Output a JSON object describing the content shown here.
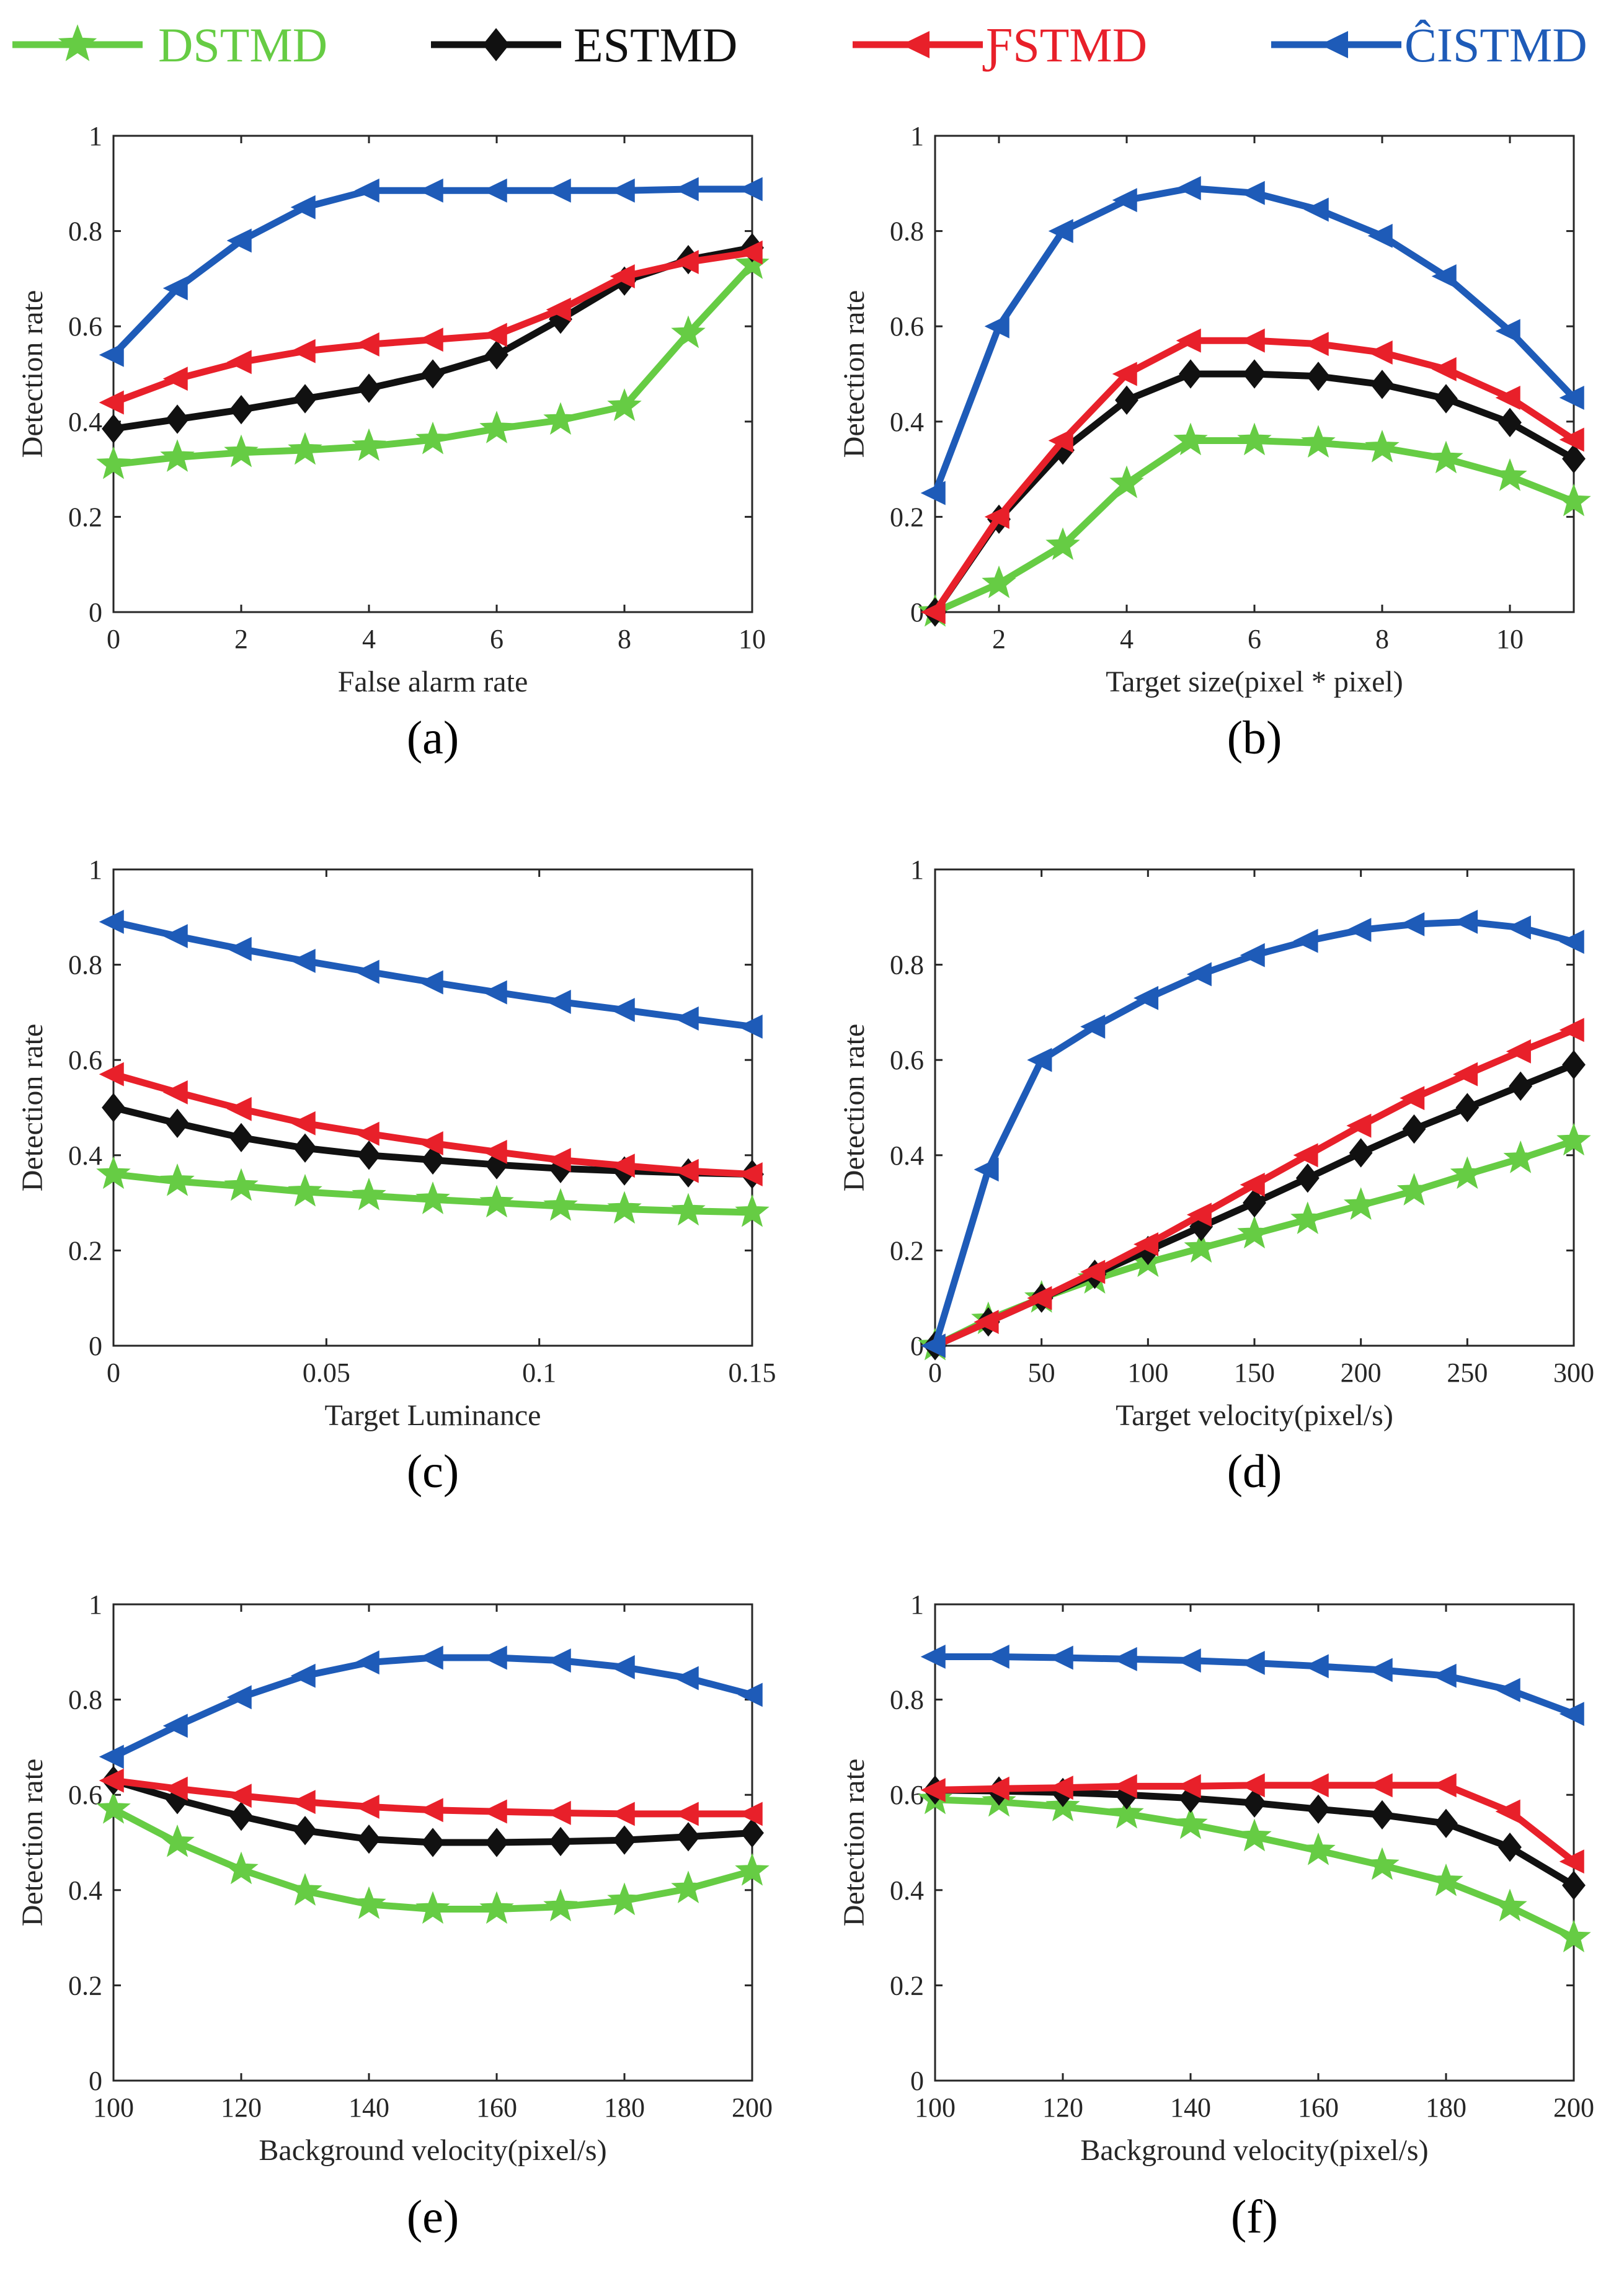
{
  "colors": {
    "DSTMD": "#66cc44",
    "ESTMD": "#111111",
    "FSTMD": "#e8202a",
    "CISTMD": "#1e5bb8"
  },
  "legend": [
    {
      "name": "DSTMD",
      "marker": "star"
    },
    {
      "name": "ESTMD",
      "marker": "diamond"
    },
    {
      "name": "FSTMD",
      "marker": "triangle-left"
    },
    {
      "name": "CISTMD",
      "marker": "triangle-left"
    }
  ],
  "legend_text": [
    "DSTMD",
    "ESTMD",
    "ƑSTMD",
    "ĈISTMD"
  ],
  "chart_data": [
    {
      "type": "line",
      "panel_label": "(a)",
      "xlabel": "False alarm rate",
      "ylabel": "Detection rate",
      "xlim": [
        0,
        10
      ],
      "ylim": [
        0,
        1
      ],
      "xticks": [
        0,
        2,
        4,
        6,
        8,
        10
      ],
      "xtick_labels": [
        "0",
        "2",
        "4",
        "6",
        "8",
        "10"
      ],
      "yticks": [
        0,
        0.2,
        0.4,
        0.6,
        0.8,
        1
      ],
      "ytick_labels": [
        "0",
        "0.2",
        "0.4",
        "0.6",
        "0.8",
        "1"
      ],
      "x": [
        0,
        1,
        2,
        3,
        4,
        5,
        6,
        7,
        8,
        9,
        10
      ],
      "series": [
        {
          "name": "DSTMD",
          "values": [
            0.31,
            0.325,
            0.335,
            0.34,
            0.348,
            0.362,
            0.385,
            0.403,
            0.432,
            0.585,
            0.73
          ]
        },
        {
          "name": "ESTMD",
          "values": [
            0.385,
            0.405,
            0.425,
            0.448,
            0.47,
            0.5,
            0.54,
            0.615,
            0.695,
            0.74,
            0.765
          ]
        },
        {
          "name": "FSTMD",
          "values": [
            0.44,
            0.49,
            0.525,
            0.548,
            0.562,
            0.572,
            0.582,
            0.635,
            0.705,
            0.735,
            0.755
          ]
        },
        {
          "name": "CISTMD",
          "values": [
            0.54,
            0.68,
            0.78,
            0.85,
            0.885,
            0.885,
            0.885,
            0.885,
            0.885,
            0.888,
            0.888
          ]
        }
      ]
    },
    {
      "type": "line",
      "panel_label": "(b)",
      "xlabel": "Target size(pixel * pixel)",
      "ylabel": "Detection rate",
      "xlim": [
        1,
        11
      ],
      "ylim": [
        0,
        1
      ],
      "xticks": [
        2,
        4,
        6,
        8,
        10
      ],
      "xtick_labels": [
        "2",
        "4",
        "6",
        "8",
        "10"
      ],
      "yticks": [
        0,
        0.2,
        0.4,
        0.6,
        0.8,
        1
      ],
      "ytick_labels": [
        "0",
        "0.2",
        "0.4",
        "0.6",
        "0.8",
        "1"
      ],
      "x": [
        1,
        2,
        3,
        4,
        5,
        6,
        7,
        8,
        9,
        10,
        11
      ],
      "series": [
        {
          "name": "DSTMD",
          "values": [
            0,
            0.06,
            0.14,
            0.27,
            0.36,
            0.36,
            0.355,
            0.345,
            0.322,
            0.285,
            0.232
          ]
        },
        {
          "name": "ESTMD",
          "values": [
            0,
            0.195,
            0.34,
            0.445,
            0.5,
            0.5,
            0.495,
            0.478,
            0.448,
            0.398,
            0.322
          ]
        },
        {
          "name": "FSTMD",
          "values": [
            0,
            0.2,
            0.36,
            0.5,
            0.57,
            0.57,
            0.563,
            0.545,
            0.51,
            0.45,
            0.362
          ]
        },
        {
          "name": "CISTMD",
          "values": [
            0.25,
            0.6,
            0.8,
            0.865,
            0.89,
            0.88,
            0.845,
            0.79,
            0.705,
            0.59,
            0.45
          ]
        }
      ]
    },
    {
      "type": "line",
      "panel_label": "(c)",
      "xlabel": "Target Luminance",
      "ylabel": "Detection rate",
      "xlim": [
        0,
        0.15
      ],
      "ylim": [
        0,
        1
      ],
      "xticks": [
        0,
        0.05,
        0.1,
        0.15
      ],
      "xtick_labels": [
        "0",
        "0.05",
        "0.1",
        "0.15"
      ],
      "yticks": [
        0,
        0.2,
        0.4,
        0.6,
        0.8,
        1
      ],
      "ytick_labels": [
        "0",
        "0.2",
        "0.4",
        "0.6",
        "0.8",
        "1"
      ],
      "x": [
        0,
        0.015,
        0.03,
        0.045,
        0.06,
        0.075,
        0.09,
        0.105,
        0.12,
        0.135,
        0.15
      ],
      "series": [
        {
          "name": "DSTMD",
          "values": [
            0.36,
            0.345,
            0.335,
            0.323,
            0.315,
            0.307,
            0.3,
            0.293,
            0.287,
            0.283,
            0.28
          ]
        },
        {
          "name": "ESTMD",
          "values": [
            0.5,
            0.467,
            0.437,
            0.415,
            0.4,
            0.39,
            0.38,
            0.372,
            0.367,
            0.363,
            0.36
          ]
        },
        {
          "name": "FSTMD",
          "values": [
            0.57,
            0.532,
            0.497,
            0.467,
            0.445,
            0.425,
            0.407,
            0.39,
            0.378,
            0.367,
            0.36
          ]
        },
        {
          "name": "CISTMD",
          "values": [
            0.89,
            0.86,
            0.833,
            0.808,
            0.785,
            0.763,
            0.742,
            0.722,
            0.705,
            0.687,
            0.67
          ]
        }
      ]
    },
    {
      "type": "line",
      "panel_label": "(d)",
      "xlabel": "Target velocity(pixel/s)",
      "ylabel": "Detection rate",
      "xlim": [
        0,
        300
      ],
      "ylim": [
        0,
        1
      ],
      "xticks": [
        0,
        50,
        100,
        150,
        200,
        250,
        300
      ],
      "xtick_labels": [
        "0",
        "50",
        "100",
        "150",
        "200",
        "250",
        "300"
      ],
      "yticks": [
        0,
        0.2,
        0.4,
        0.6,
        0.8,
        1
      ],
      "ytick_labels": [
        "0",
        "0.2",
        "0.4",
        "0.6",
        "0.8",
        "1"
      ],
      "x": [
        0,
        25,
        50,
        75,
        100,
        125,
        150,
        175,
        200,
        225,
        250,
        275,
        300
      ],
      "series": [
        {
          "name": "DSTMD",
          "values": [
            0,
            0.055,
            0.1,
            0.14,
            0.175,
            0.205,
            0.235,
            0.265,
            0.295,
            0.325,
            0.36,
            0.393,
            0.43
          ]
        },
        {
          "name": "ESTMD",
          "values": [
            0,
            0.05,
            0.1,
            0.15,
            0.2,
            0.25,
            0.3,
            0.352,
            0.405,
            0.455,
            0.5,
            0.545,
            0.59
          ]
        },
        {
          "name": "FSTMD",
          "values": [
            0,
            0.05,
            0.1,
            0.155,
            0.213,
            0.275,
            0.338,
            0.4,
            0.462,
            0.52,
            0.57,
            0.618,
            0.663
          ]
        },
        {
          "name": "CISTMD",
          "values": [
            0,
            0.37,
            0.6,
            0.67,
            0.73,
            0.78,
            0.82,
            0.85,
            0.873,
            0.885,
            0.89,
            0.878,
            0.848
          ]
        }
      ]
    },
    {
      "type": "line",
      "panel_label": "(e)",
      "xlabel": "Background velocity(pixel/s)",
      "ylabel": "Detection rate",
      "xlim": [
        100,
        200
      ],
      "ylim": [
        0,
        1
      ],
      "xticks": [
        100,
        120,
        140,
        160,
        180,
        200
      ],
      "xtick_labels": [
        "100",
        "120",
        "140",
        "160",
        "180",
        "200"
      ],
      "yticks": [
        0,
        0.2,
        0.4,
        0.6,
        0.8,
        1
      ],
      "ytick_labels": [
        "0",
        "0.2",
        "0.4",
        "0.6",
        "0.8",
        "1"
      ],
      "x": [
        100,
        110,
        120,
        130,
        140,
        150,
        160,
        170,
        180,
        190,
        200
      ],
      "series": [
        {
          "name": "DSTMD",
          "values": [
            0.57,
            0.5,
            0.443,
            0.398,
            0.37,
            0.36,
            0.36,
            0.365,
            0.378,
            0.403,
            0.44
          ]
        },
        {
          "name": "ESTMD",
          "values": [
            0.63,
            0.59,
            0.555,
            0.525,
            0.507,
            0.5,
            0.5,
            0.502,
            0.505,
            0.512,
            0.52
          ]
        },
        {
          "name": "FSTMD",
          "values": [
            0.63,
            0.613,
            0.598,
            0.585,
            0.575,
            0.568,
            0.565,
            0.562,
            0.56,
            0.56,
            0.56
          ]
        },
        {
          "name": "CISTMD",
          "values": [
            0.68,
            0.745,
            0.805,
            0.85,
            0.878,
            0.888,
            0.888,
            0.882,
            0.868,
            0.845,
            0.81
          ]
        }
      ]
    },
    {
      "type": "line",
      "panel_label": "(f)",
      "xlabel": "Background velocity(pixel/s)",
      "ylabel": "Detection rate",
      "xlim": [
        100,
        200
      ],
      "ylim": [
        0,
        1
      ],
      "xticks": [
        100,
        120,
        140,
        160,
        180,
        200
      ],
      "xtick_labels": [
        "100",
        "120",
        "140",
        "160",
        "180",
        "200"
      ],
      "yticks": [
        0,
        0.2,
        0.4,
        0.6,
        0.8,
        1
      ],
      "ytick_labels": [
        "0",
        "0.2",
        "0.4",
        "0.6",
        "0.8",
        "1"
      ],
      "x": [
        100,
        110,
        120,
        130,
        140,
        150,
        160,
        170,
        180,
        190,
        200
      ],
      "series": [
        {
          "name": "DSTMD",
          "values": [
            0.59,
            0.585,
            0.575,
            0.56,
            0.538,
            0.512,
            0.483,
            0.452,
            0.418,
            0.365,
            0.3
          ]
        },
        {
          "name": "ESTMD",
          "values": [
            0.61,
            0.608,
            0.605,
            0.6,
            0.593,
            0.583,
            0.57,
            0.558,
            0.54,
            0.49,
            0.41
          ]
        },
        {
          "name": "FSTMD",
          "values": [
            0.61,
            0.613,
            0.615,
            0.618,
            0.618,
            0.62,
            0.62,
            0.62,
            0.62,
            0.565,
            0.46
          ]
        },
        {
          "name": "CISTMD",
          "values": [
            0.89,
            0.89,
            0.888,
            0.885,
            0.882,
            0.877,
            0.87,
            0.862,
            0.85,
            0.82,
            0.77
          ]
        }
      ]
    }
  ]
}
